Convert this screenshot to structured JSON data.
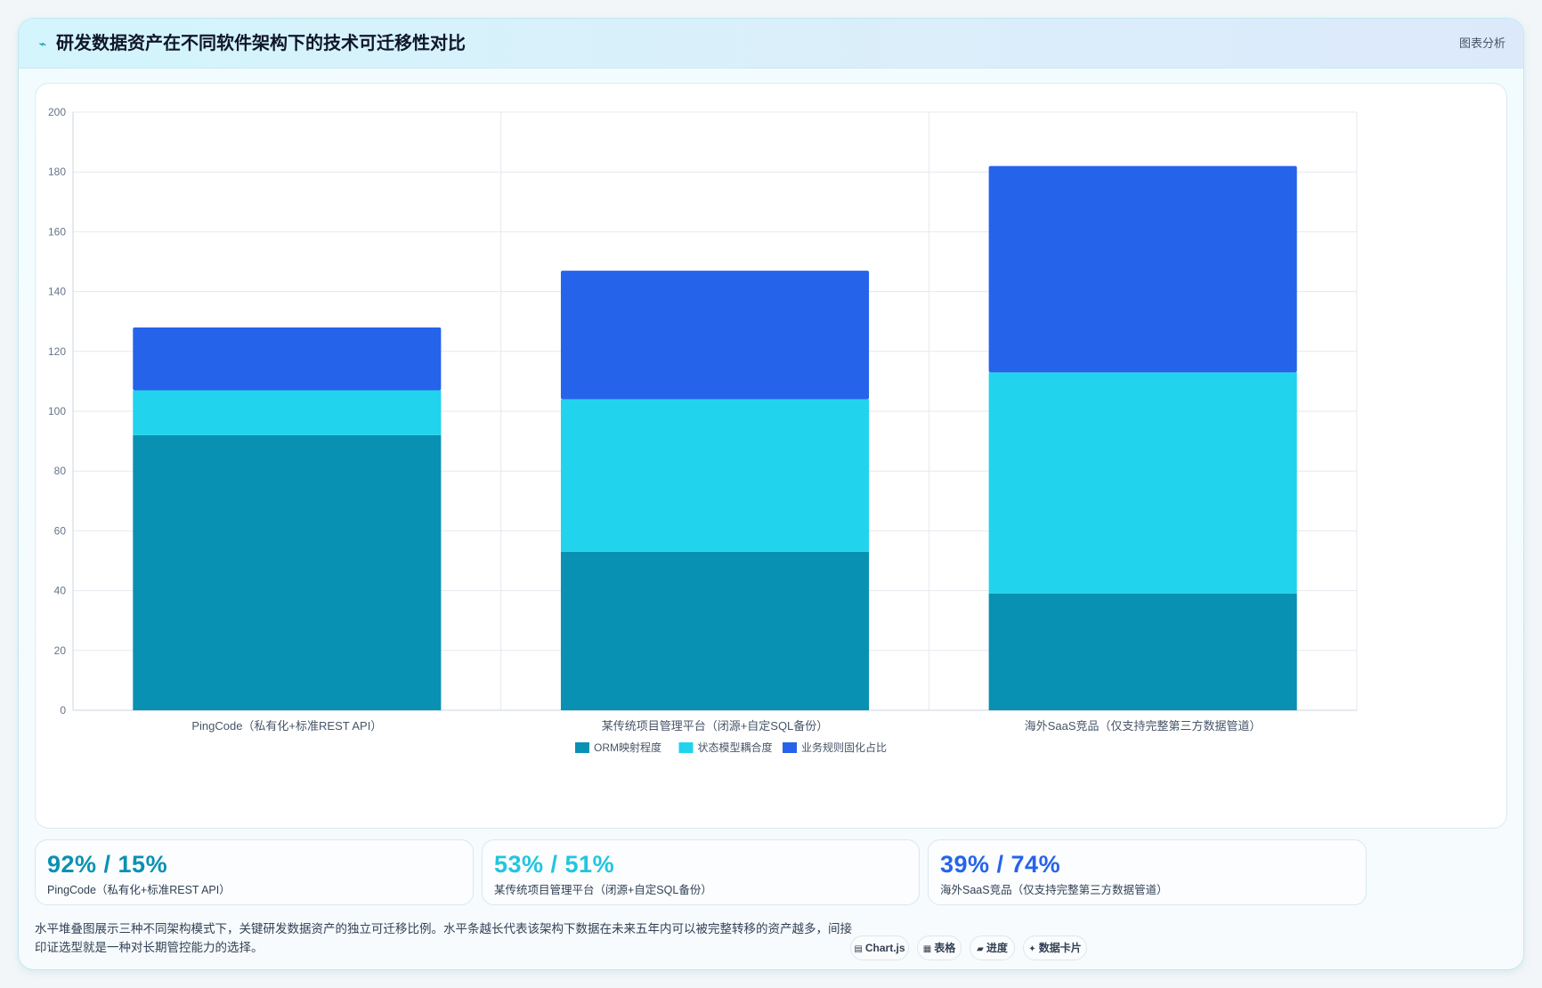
{
  "header": {
    "icon": "line-chart-icon",
    "title": "研发数据资产在不同软件架构下的技术可迁移性对比",
    "tag": "图表分析"
  },
  "chart_data": {
    "type": "bar",
    "stacked": true,
    "categories": [
      "PingCode（私有化+标准REST API）",
      "某传统项目管理平台（闭源+自定SQL备份）",
      "海外SaaS竞品（仅支持完整第三方数据管道）"
    ],
    "series": [
      {
        "name": "ORM映射程度",
        "color": "#0891b2",
        "values": [
          92,
          53,
          39
        ]
      },
      {
        "name": "状态模型耦合度",
        "color": "#22d3ee",
        "values": [
          15,
          51,
          74
        ]
      },
      {
        "name": "业务规则固化占比",
        "color": "#2563eb",
        "values": [
          21,
          43,
          69
        ]
      }
    ],
    "ylim": [
      0,
      200
    ],
    "yticks": [
      0,
      20,
      40,
      60,
      80,
      100,
      120,
      140,
      160,
      180,
      200
    ],
    "grid": true,
    "legend_position": "bottom"
  },
  "stats": [
    {
      "value": "92% / 15%",
      "label": "PingCode（私有化+标准REST API）",
      "color": "#0891b2"
    },
    {
      "value": "53% / 51%",
      "label": "某传统项目管理平台（闭源+自定SQL备份）",
      "color": "#22c5df"
    },
    {
      "value": "39% / 74%",
      "label": "海外SaaS竞品（仅支持完整第三方数据管道）",
      "color": "#2563eb"
    }
  ],
  "description": "水平堆叠图展示三种不同架构模式下，关键研发数据资产的独立可迁移比例。水平条越长代表该架构下数据在未来五年内可以被完整转移的资产越多，间接印证选型就是一种对长期管控能力的选择。",
  "buttons": [
    {
      "icon": "chart-icon",
      "glyph": "▤",
      "label": "Chart.js"
    },
    {
      "icon": "table-icon",
      "glyph": "▦",
      "label": "表格"
    },
    {
      "icon": "progress-icon",
      "glyph": "▰",
      "label": "进度"
    },
    {
      "icon": "card-icon",
      "glyph": "✦",
      "label": "数据卡片"
    }
  ]
}
